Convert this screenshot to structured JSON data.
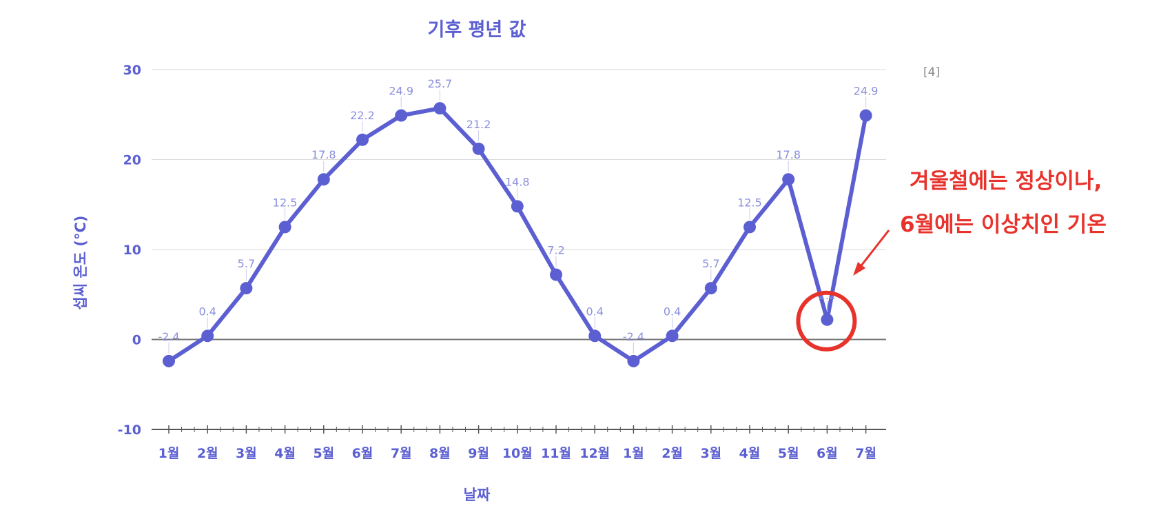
{
  "chart_data": {
    "type": "line",
    "title": "기후 평년 값",
    "xlabel": "날짜",
    "ylabel": "섭씨 온도 (°C)",
    "categories": [
      "1월",
      "2월",
      "3월",
      "4월",
      "5월",
      "6월",
      "7월",
      "8월",
      "9월",
      "10월",
      "11월",
      "12월",
      "1월",
      "2월",
      "3월",
      "4월",
      "5월",
      "6월",
      "7월"
    ],
    "series": [
      {
        "values": [
          -2.4,
          0.4,
          5.7,
          12.5,
          17.8,
          22.2,
          24.9,
          25.7,
          21.2,
          14.8,
          7.2,
          0.4,
          -2.4,
          0.4,
          5.7,
          12.5,
          17.8,
          2.2,
          24.9
        ]
      }
    ],
    "data_labels": [
      "-2.4",
      "0.4",
      "5.7",
      "12.5",
      "17.8",
      "22.2",
      "24.9",
      "25.7",
      "21.2",
      "14.8",
      "7.2",
      "0.4",
      "-2.4",
      "0.4",
      "5.7",
      "12.5",
      "17.8",
      "2.2",
      "24.9"
    ],
    "ylim": [
      -10,
      30
    ],
    "yticks": [
      30,
      20,
      10,
      0,
      -10
    ],
    "grid": true,
    "highlight_index": 17
  },
  "reference": "[4]",
  "annotation": {
    "line1": "겨울철에는 정상이나,",
    "line2": "6월에는 이상치인 기온"
  },
  "colors": {
    "series": "#5b5fd1",
    "axis_text": "#5b5fd1",
    "data_label": "#8a8fdd",
    "grid": "#d9d9d9",
    "zero_line": "#777777",
    "annotation": "#e8322c"
  }
}
